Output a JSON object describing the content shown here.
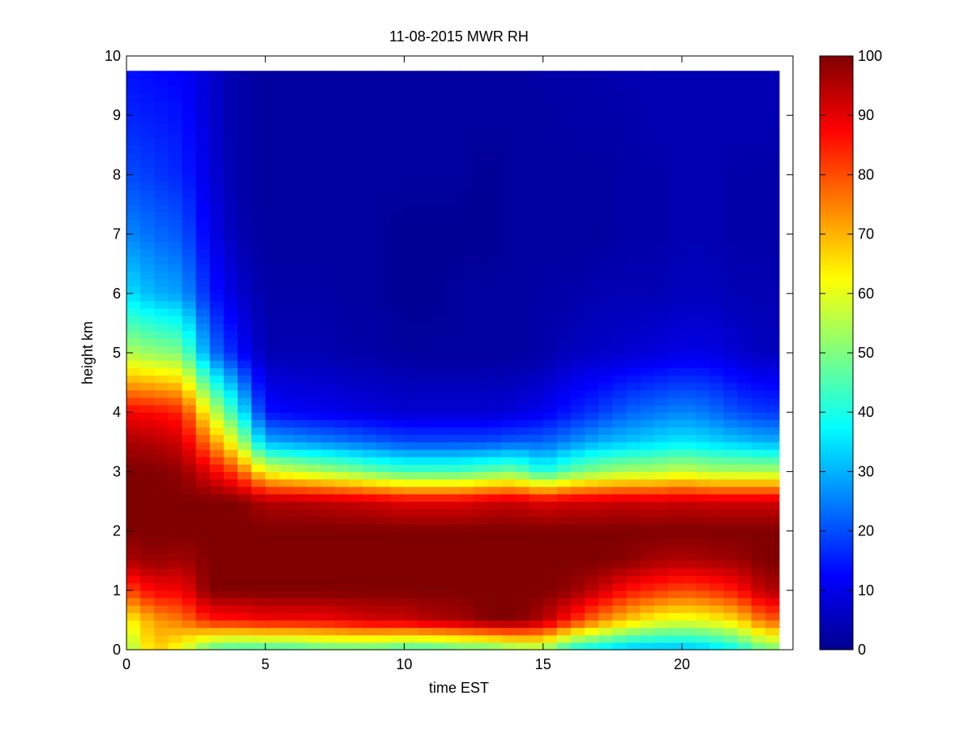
{
  "chart_data": {
    "type": "heatmap",
    "title": "11-08-2015 MWR RH",
    "xlabel": "time EST",
    "ylabel": "height km",
    "xlim": [
      0,
      24
    ],
    "ylim": [
      0,
      10
    ],
    "xticks": [
      0,
      5,
      10,
      15,
      20
    ],
    "yticks": [
      0,
      1,
      2,
      3,
      4,
      5,
      6,
      7,
      8,
      9,
      10
    ],
    "colormap": "jet",
    "clim": [
      0,
      100
    ],
    "colorbar_ticks": [
      0,
      10,
      20,
      30,
      40,
      50,
      60,
      70,
      80,
      90,
      100
    ],
    "grid": false,
    "time_bins_hours": [
      0,
      1,
      2,
      3,
      4,
      5,
      6,
      7,
      8,
      9,
      10,
      11,
      12,
      13,
      14,
      15,
      16,
      17,
      18,
      19,
      20,
      21,
      22,
      23
    ],
    "height_levels_km": [
      0,
      0.5,
      1.0,
      1.5,
      2.0,
      2.5,
      3.0,
      3.5,
      4.0,
      5.0,
      6.0,
      7.0,
      8.0,
      9.0,
      9.75
    ],
    "rh_percent": [
      [
        52,
        68,
        60,
        45,
        42,
        42,
        42,
        45,
        45,
        45,
        42,
        42,
        45,
        45,
        50,
        52,
        38,
        35,
        30,
        30,
        30,
        32,
        38,
        48
      ],
      [
        62,
        72,
        76,
        85,
        86,
        88,
        88,
        88,
        90,
        92,
        92,
        95,
        96,
        100,
        100,
        95,
        85,
        75,
        68,
        62,
        60,
        62,
        66,
        78
      ],
      [
        80,
        88,
        88,
        100,
        100,
        100,
        100,
        100,
        100,
        100,
        100,
        100,
        100,
        100,
        100,
        100,
        98,
        93,
        86,
        83,
        80,
        82,
        86,
        95
      ],
      [
        95,
        98,
        96,
        100,
        100,
        100,
        100,
        100,
        100,
        100,
        100,
        100,
        100,
        100,
        100,
        100,
        100,
        100,
        99,
        96,
        95,
        96,
        97,
        100
      ],
      [
        100,
        100,
        100,
        100,
        100,
        100,
        100,
        100,
        100,
        100,
        100,
        100,
        100,
        100,
        100,
        100,
        100,
        100,
        100,
        100,
        100,
        100,
        100,
        100
      ],
      [
        100,
        100,
        100,
        100,
        100,
        95,
        95,
        94,
        93,
        92,
        90,
        90,
        90,
        92,
        93,
        90,
        92,
        92,
        93,
        92,
        93,
        92,
        92,
        92
      ],
      [
        100,
        100,
        98,
        90,
        80,
        62,
        58,
        55,
        52,
        48,
        45,
        45,
        45,
        48,
        50,
        40,
        48,
        52,
        55,
        55,
        58,
        55,
        55,
        55
      ],
      [
        96,
        95,
        92,
        75,
        58,
        30,
        28,
        26,
        24,
        22,
        20,
        20,
        20,
        20,
        22,
        22,
        26,
        30,
        32,
        34,
        36,
        34,
        32,
        30
      ],
      [
        88,
        87,
        84,
        60,
        40,
        14,
        12,
        11,
        10,
        9,
        8,
        8,
        8,
        8,
        9,
        11,
        15,
        18,
        22,
        24,
        26,
        24,
        20,
        18
      ],
      [
        55,
        52,
        50,
        25,
        14,
        5,
        5,
        5,
        4,
        4,
        3,
        3,
        3,
        3,
        3,
        4,
        6,
        7,
        8,
        9,
        10,
        10,
        8,
        6
      ],
      [
        35,
        30,
        28,
        15,
        8,
        4,
        4,
        4,
        3,
        3,
        2,
        2,
        3,
        3,
        3,
        4,
        4,
        5,
        5,
        5,
        6,
        6,
        5,
        5
      ],
      [
        26,
        23,
        21,
        11,
        5,
        3,
        3,
        3,
        3,
        3,
        2,
        2,
        2,
        2,
        3,
        3,
        3,
        3,
        4,
        4,
        5,
        5,
        4,
        4
      ],
      [
        20,
        18,
        16,
        9,
        4,
        3,
        3,
        3,
        3,
        3,
        3,
        3,
        3,
        2,
        3,
        3,
        3,
        3,
        4,
        4,
        5,
        5,
        4,
        4
      ],
      [
        16,
        15,
        14,
        8,
        4,
        3,
        3,
        3,
        3,
        3,
        3,
        3,
        3,
        3,
        3,
        3,
        4,
        4,
        4,
        5,
        5,
        5,
        5,
        5
      ],
      [
        14,
        13,
        12,
        8,
        4,
        3,
        3,
        3,
        3,
        3,
        3,
        3,
        3,
        3,
        3,
        4,
        4,
        4,
        5,
        5,
        5,
        5,
        5,
        5
      ]
    ]
  }
}
